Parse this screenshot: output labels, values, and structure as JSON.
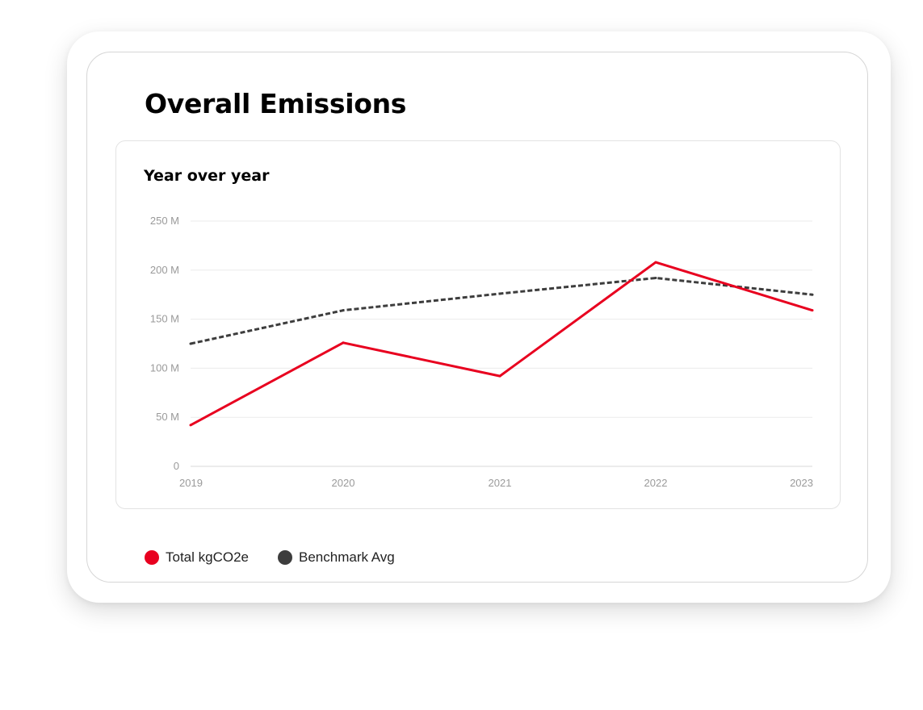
{
  "page": {
    "title": "Overall Emissions"
  },
  "chart_data": {
    "type": "line",
    "title": "Year over year",
    "x": [
      "2019",
      "2020",
      "2021",
      "2022",
      "2023"
    ],
    "yticks": [
      {
        "value": 0,
        "label": "0"
      },
      {
        "value": 50,
        "label": "50 M"
      },
      {
        "value": 100,
        "label": "100 M"
      },
      {
        "value": 150,
        "label": "150 M"
      },
      {
        "value": 200,
        "label": "200 M"
      },
      {
        "value": 250,
        "label": "250 M"
      }
    ],
    "ylim": [
      0,
      250
    ],
    "grid": true,
    "legend_position": "bottom-left",
    "series": [
      {
        "name": "Total kgCO2e",
        "color": "#e8001f",
        "style": "solid",
        "values": [
          42,
          126,
          92,
          208,
          159
        ]
      },
      {
        "name": "Benchmark Avg",
        "color": "#3d3d3d",
        "style": "dashed",
        "values": [
          125,
          159,
          176,
          192,
          175
        ]
      }
    ]
  }
}
